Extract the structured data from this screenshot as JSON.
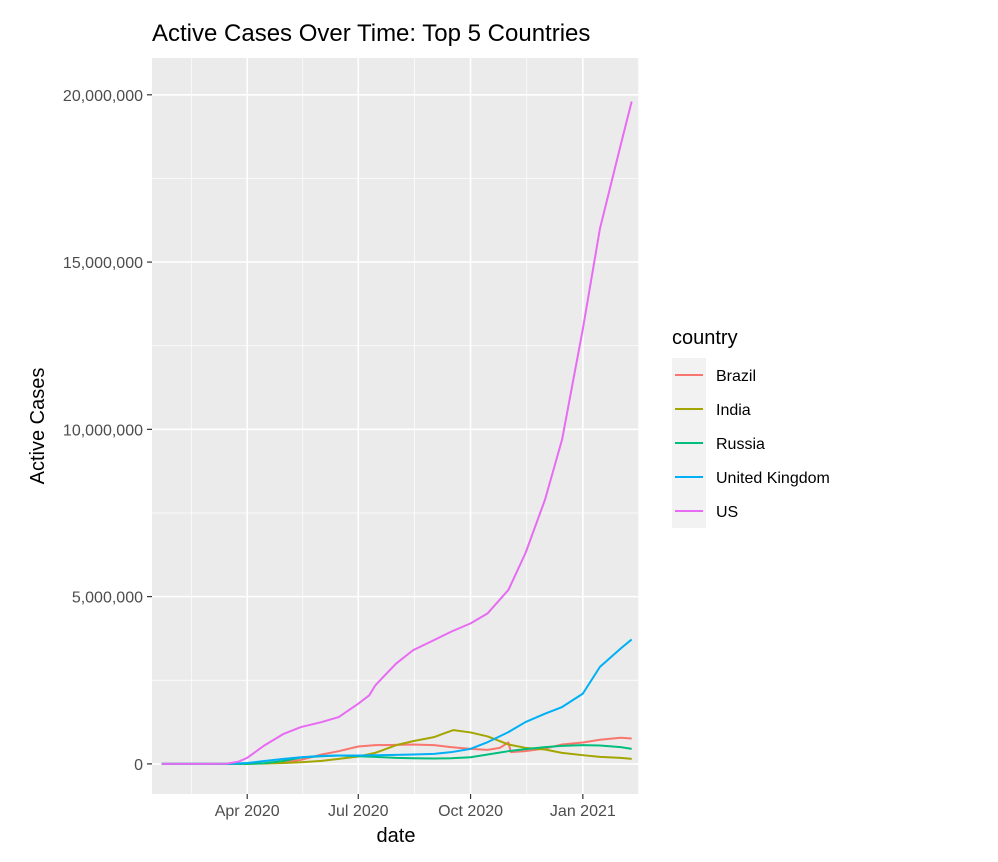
{
  "chart_data": {
    "type": "line",
    "title": "Active Cases Over Time: Top 5 Countries",
    "xlabel": "date",
    "ylabel": "Active Cases",
    "x_ticks": [
      "Apr 2020",
      "Jul 2020",
      "Oct 2020",
      "Jan 2021"
    ],
    "y_ticks": [
      "0",
      "5,000,000",
      "10,000,000",
      "15,000,000",
      "20,000,000"
    ],
    "xlim": [
      "2020-01-14",
      "2021-02-16"
    ],
    "ylim": [
      -900000,
      21100000
    ],
    "grid": true,
    "legend": {
      "title": "country",
      "placement": "right"
    },
    "series": [
      {
        "name": "Brazil",
        "color": "#F8766D",
        "points": [
          [
            "2020-01-22",
            0
          ],
          [
            "2020-02-26",
            0
          ],
          [
            "2020-03-15",
            300
          ],
          [
            "2020-04-01",
            6000
          ],
          [
            "2020-04-15",
            20000
          ],
          [
            "2020-05-01",
            50000
          ],
          [
            "2020-05-15",
            120000
          ],
          [
            "2020-06-01",
            280000
          ],
          [
            "2020-06-15",
            380000
          ],
          [
            "2020-07-01",
            520000
          ],
          [
            "2020-07-15",
            560000
          ],
          [
            "2020-08-01",
            570000
          ],
          [
            "2020-08-15",
            580000
          ],
          [
            "2020-09-01",
            560000
          ],
          [
            "2020-09-15",
            500000
          ],
          [
            "2020-10-01",
            450000
          ],
          [
            "2020-10-15",
            420000
          ],
          [
            "2020-10-25",
            480000
          ],
          [
            "2020-11-01",
            640000
          ],
          [
            "2020-11-03",
            350000
          ],
          [
            "2020-11-15",
            380000
          ],
          [
            "2020-12-01",
            460000
          ],
          [
            "2020-12-15",
            580000
          ],
          [
            "2021-01-01",
            640000
          ],
          [
            "2021-01-15",
            720000
          ],
          [
            "2021-02-01",
            780000
          ],
          [
            "2021-02-10",
            760000
          ]
        ]
      },
      {
        "name": "India",
        "color": "#A3A500",
        "points": [
          [
            "2020-01-22",
            0
          ],
          [
            "2020-03-15",
            100
          ],
          [
            "2020-04-01",
            2000
          ],
          [
            "2020-04-15",
            10000
          ],
          [
            "2020-05-01",
            25000
          ],
          [
            "2020-05-15",
            50000
          ],
          [
            "2020-06-01",
            90000
          ],
          [
            "2020-06-15",
            150000
          ],
          [
            "2020-07-01",
            220000
          ],
          [
            "2020-07-15",
            330000
          ],
          [
            "2020-08-01",
            560000
          ],
          [
            "2020-08-15",
            680000
          ],
          [
            "2020-09-01",
            800000
          ],
          [
            "2020-09-10",
            920000
          ],
          [
            "2020-09-17",
            1010000
          ],
          [
            "2020-10-01",
            940000
          ],
          [
            "2020-10-15",
            820000
          ],
          [
            "2020-11-01",
            580000
          ],
          [
            "2020-11-15",
            480000
          ],
          [
            "2020-12-01",
            430000
          ],
          [
            "2020-12-15",
            330000
          ],
          [
            "2021-01-01",
            260000
          ],
          [
            "2021-01-15",
            210000
          ],
          [
            "2021-02-01",
            180000
          ],
          [
            "2021-02-10",
            150000
          ]
        ]
      },
      {
        "name": "Russia",
        "color": "#00BF7D",
        "points": [
          [
            "2020-01-22",
            0
          ],
          [
            "2020-03-15",
            50
          ],
          [
            "2020-04-01",
            2000
          ],
          [
            "2020-04-15",
            20000
          ],
          [
            "2020-05-01",
            90000
          ],
          [
            "2020-05-15",
            190000
          ],
          [
            "2020-06-01",
            230000
          ],
          [
            "2020-06-15",
            250000
          ],
          [
            "2020-07-01",
            230000
          ],
          [
            "2020-07-15",
            210000
          ],
          [
            "2020-08-01",
            180000
          ],
          [
            "2020-08-15",
            170000
          ],
          [
            "2020-09-01",
            160000
          ],
          [
            "2020-09-15",
            170000
          ],
          [
            "2020-10-01",
            200000
          ],
          [
            "2020-10-15",
            280000
          ],
          [
            "2020-11-01",
            380000
          ],
          [
            "2020-11-15",
            440000
          ],
          [
            "2020-12-01",
            500000
          ],
          [
            "2020-12-15",
            540000
          ],
          [
            "2021-01-01",
            560000
          ],
          [
            "2021-01-15",
            550000
          ],
          [
            "2021-02-01",
            500000
          ],
          [
            "2021-02-10",
            450000
          ]
        ]
      },
      {
        "name": "United Kingdom",
        "color": "#00B0F6",
        "points": [
          [
            "2020-01-22",
            0
          ],
          [
            "2020-03-01",
            50
          ],
          [
            "2020-03-15",
            1000
          ],
          [
            "2020-04-01",
            25000
          ],
          [
            "2020-04-15",
            85000
          ],
          [
            "2020-05-01",
            150000
          ],
          [
            "2020-05-15",
            200000
          ],
          [
            "2020-06-01",
            240000
          ],
          [
            "2020-06-15",
            250000
          ],
          [
            "2020-07-01",
            250000
          ],
          [
            "2020-07-15",
            260000
          ],
          [
            "2020-08-01",
            270000
          ],
          [
            "2020-08-15",
            280000
          ],
          [
            "2020-09-01",
            300000
          ],
          [
            "2020-09-15",
            350000
          ],
          [
            "2020-10-01",
            450000
          ],
          [
            "2020-10-15",
            650000
          ],
          [
            "2020-11-01",
            950000
          ],
          [
            "2020-11-15",
            1250000
          ],
          [
            "2020-12-01",
            1500000
          ],
          [
            "2020-12-15",
            1700000
          ],
          [
            "2021-01-01",
            2100000
          ],
          [
            "2021-01-15",
            2900000
          ],
          [
            "2021-02-01",
            3450000
          ],
          [
            "2021-02-10",
            3720000
          ]
        ]
      },
      {
        "name": "US",
        "color": "#E76BF3",
        "points": [
          [
            "2020-01-22",
            0
          ],
          [
            "2020-03-01",
            30
          ],
          [
            "2020-03-15",
            3000
          ],
          [
            "2020-03-25",
            70000
          ],
          [
            "2020-04-01",
            180000
          ],
          [
            "2020-04-15",
            550000
          ],
          [
            "2020-05-01",
            900000
          ],
          [
            "2020-05-15",
            1100000
          ],
          [
            "2020-06-01",
            1250000
          ],
          [
            "2020-06-15",
            1400000
          ],
          [
            "2020-07-01",
            1800000
          ],
          [
            "2020-07-10",
            2050000
          ],
          [
            "2020-07-15",
            2350000
          ],
          [
            "2020-08-01",
            3000000
          ],
          [
            "2020-08-15",
            3400000
          ],
          [
            "2020-09-01",
            3700000
          ],
          [
            "2020-09-15",
            3950000
          ],
          [
            "2020-10-01",
            4200000
          ],
          [
            "2020-10-15",
            4500000
          ],
          [
            "2020-11-01",
            5200000
          ],
          [
            "2020-11-15",
            6300000
          ],
          [
            "2020-12-01",
            7900000
          ],
          [
            "2020-12-15",
            9700000
          ],
          [
            "2021-01-01",
            13000000
          ],
          [
            "2021-01-15",
            16000000
          ],
          [
            "2021-02-01",
            18500000
          ],
          [
            "2021-02-10",
            19800000
          ]
        ]
      }
    ]
  }
}
